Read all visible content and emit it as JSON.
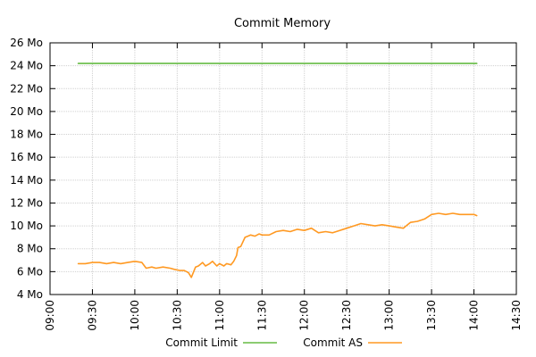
{
  "chart_data": {
    "type": "line",
    "title": "Commit Memory",
    "xlabel": "",
    "ylabel": "",
    "grid": true,
    "legend_position": "bottom",
    "ylim": [
      4,
      26
    ],
    "y_unit": "Mo",
    "yticks": [
      "4 Mo",
      "6 Mo",
      "8 Mo",
      "10 Mo",
      "12 Mo",
      "14 Mo",
      "16 Mo",
      "18 Mo",
      "20 Mo",
      "22 Mo",
      "24 Mo",
      "26 Mo"
    ],
    "xlim": [
      "09:00",
      "14:30"
    ],
    "xticks": [
      "09:00",
      "09:30",
      "10:00",
      "10:30",
      "11:00",
      "11:30",
      "12:00",
      "12:30",
      "13:00",
      "13:30",
      "14:00",
      "14:30"
    ],
    "series": [
      {
        "name": "Commit Limit",
        "color": "#66bb44",
        "x": [
          "09:20",
          "14:02"
        ],
        "y": [
          24.2,
          24.2
        ]
      },
      {
        "name": "Commit AS",
        "color": "#ff9922",
        "x": [
          "09:20",
          "09:25",
          "09:30",
          "09:35",
          "09:40",
          "09:45",
          "09:50",
          "09:55",
          "10:00",
          "10:05",
          "10:08",
          "10:12",
          "10:15",
          "10:20",
          "10:25",
          "10:28",
          "10:32",
          "10:35",
          "10:38",
          "10:40",
          "10:43",
          "10:45",
          "10:48",
          "10:50",
          "10:53",
          "10:55",
          "10:58",
          "11:00",
          "11:03",
          "11:05",
          "11:08",
          "11:10",
          "11:12",
          "11:13",
          "11:15",
          "11:18",
          "11:20",
          "11:22",
          "11:25",
          "11:28",
          "11:30",
          "11:35",
          "11:40",
          "11:45",
          "11:50",
          "11:55",
          "12:00",
          "12:05",
          "12:10",
          "12:15",
          "12:20",
          "12:25",
          "12:30",
          "12:35",
          "12:40",
          "12:45",
          "12:50",
          "12:55",
          "13:00",
          "13:05",
          "13:10",
          "13:12",
          "13:15",
          "13:20",
          "13:25",
          "13:30",
          "13:35",
          "13:40",
          "13:45",
          "13:50",
          "13:55",
          "14:00",
          "14:02"
        ],
        "y": [
          6.7,
          6.7,
          6.8,
          6.8,
          6.7,
          6.8,
          6.7,
          6.8,
          6.9,
          6.8,
          6.3,
          6.4,
          6.3,
          6.4,
          6.3,
          6.2,
          6.1,
          6.1,
          5.9,
          5.5,
          6.4,
          6.5,
          6.8,
          6.5,
          6.7,
          6.9,
          6.5,
          6.7,
          6.5,
          6.7,
          6.6,
          6.9,
          7.4,
          8.1,
          8.2,
          9.0,
          9.1,
          9.2,
          9.1,
          9.3,
          9.2,
          9.2,
          9.5,
          9.6,
          9.5,
          9.7,
          9.6,
          9.8,
          9.4,
          9.5,
          9.4,
          9.6,
          9.8,
          10.0,
          10.2,
          10.1,
          10.0,
          10.1,
          10.0,
          9.9,
          9.8,
          10.0,
          10.3,
          10.4,
          10.6,
          11.0,
          11.1,
          11.0,
          11.1,
          11.0,
          11.0,
          11.0,
          10.9
        ]
      }
    ]
  }
}
